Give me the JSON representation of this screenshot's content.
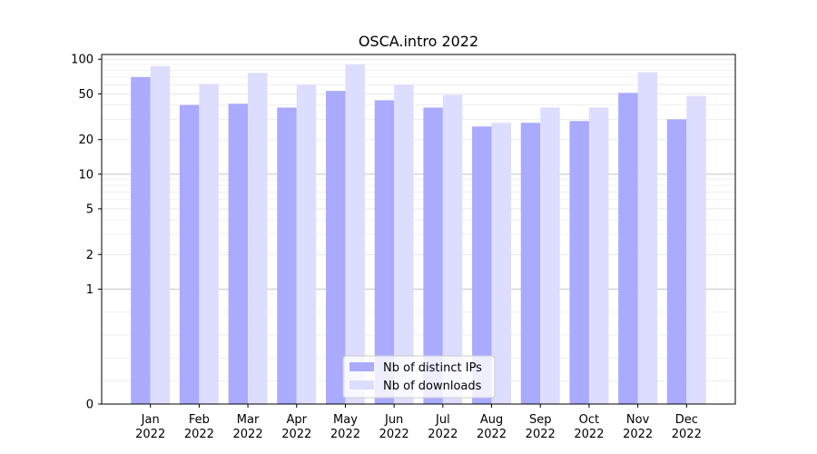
{
  "chart_data": {
    "type": "bar",
    "title": "OSCA.intro 2022",
    "xlabel": "",
    "ylabel": "",
    "y_scale": "symlog",
    "ylim": [
      0,
      110
    ],
    "categories": [
      [
        "Jan",
        "2022"
      ],
      [
        "Feb",
        "2022"
      ],
      [
        "Mar",
        "2022"
      ],
      [
        "Apr",
        "2022"
      ],
      [
        "May",
        "2022"
      ],
      [
        "Jun",
        "2022"
      ],
      [
        "Jul",
        "2022"
      ],
      [
        "Aug",
        "2022"
      ],
      [
        "Sep",
        "2022"
      ],
      [
        "Oct",
        "2022"
      ],
      [
        "Nov",
        "2022"
      ],
      [
        "Dec",
        "2022"
      ]
    ],
    "y_ticks": [
      {
        "value": 0,
        "label": "0"
      },
      {
        "value": 1,
        "label": "1"
      },
      {
        "value": 2,
        "label": "2"
      },
      {
        "value": 5,
        "label": "5"
      },
      {
        "value": 10,
        "label": "10"
      },
      {
        "value": 20,
        "label": "20"
      },
      {
        "value": 50,
        "label": "50"
      },
      {
        "value": 100,
        "label": "100"
      }
    ],
    "grid": true,
    "legend_position": "bottom-center",
    "series": [
      {
        "name": "Nb of distinct IPs",
        "color": "#aaaaff",
        "values": [
          70,
          40,
          41,
          38,
          53,
          44,
          38,
          26,
          28,
          29,
          51,
          30
        ]
      },
      {
        "name": "Nb of downloads",
        "color": "#ddddff",
        "values": [
          87,
          61,
          76,
          60,
          90,
          60,
          49,
          28,
          38,
          38,
          77,
          48
        ]
      }
    ]
  }
}
